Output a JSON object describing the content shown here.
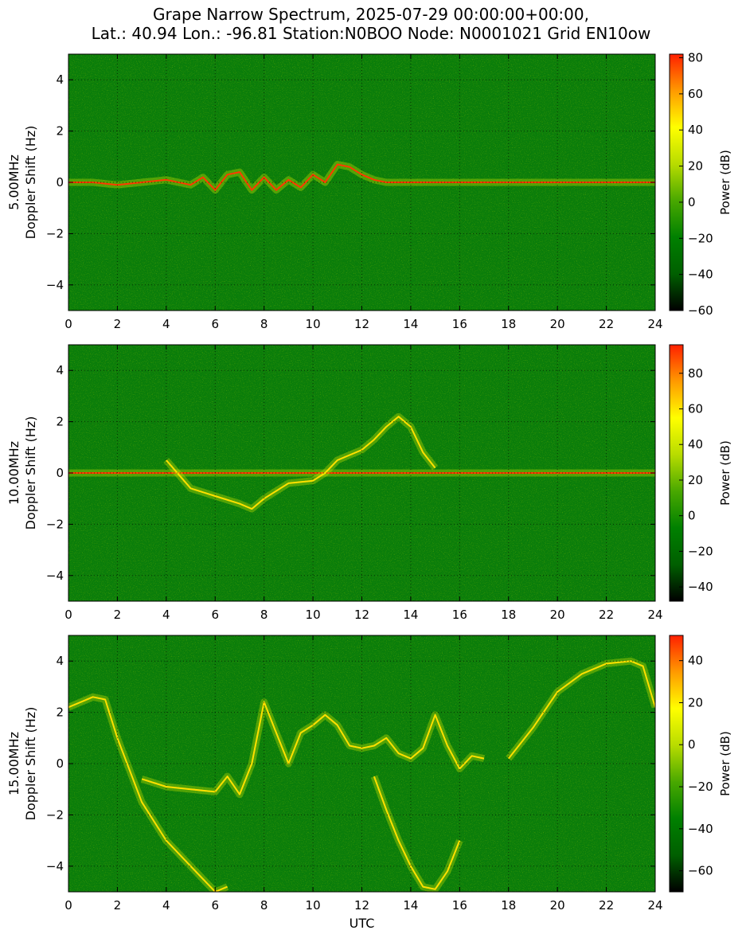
{
  "title": {
    "line1": "Grape Narrow Spectrum, 2025-07-29 00:00:00+00:00,",
    "line2": "Lat.: 40.94 Lon.: -96.81 Station:N0BOO Node: N0001021 Grid EN10ow"
  },
  "colors": {
    "spectrogram_background": "#0a7d0a",
    "colormap": [
      "#000000",
      "#005f00",
      "#008000",
      "#49a800",
      "#b8dc00",
      "#ffff00",
      "#ff9a00",
      "#ff2000"
    ]
  },
  "chart_data": [
    {
      "type": "heatmap",
      "frequency": "5.00MHz",
      "ylabel_line1": "5.00MHz",
      "ylabel_line2": "Doppler Shift (Hz)",
      "xlabel": "",
      "xlim": [
        0,
        24
      ],
      "ylim": [
        -5,
        5
      ],
      "x_ticks": [
        0,
        2,
        4,
        6,
        8,
        10,
        12,
        14,
        16,
        18,
        20,
        22,
        24
      ],
      "y_ticks": [
        -4,
        -2,
        0,
        2,
        4
      ],
      "grid": true,
      "colorbar": {
        "label": "Power (dB)",
        "range": [
          -60,
          82
        ],
        "ticks": [
          -60,
          -40,
          -20,
          0,
          20,
          40,
          60,
          80
        ]
      },
      "traces": [
        {
          "name": "",
          "x": [
            0,
            1,
            2,
            3,
            4,
            5,
            5.5,
            6,
            6.5,
            7,
            7.5,
            8,
            8.5,
            9,
            9.5,
            10,
            10.5,
            11,
            11.5,
            12,
            12.5,
            13,
            14,
            16,
            18,
            20,
            22,
            24
          ],
          "y": [
            0.0,
            0.0,
            -0.1,
            0.0,
            0.1,
            -0.1,
            0.2,
            -0.3,
            0.3,
            0.4,
            -0.3,
            0.2,
            -0.3,
            0.1,
            -0.2,
            0.3,
            0.0,
            0.7,
            0.6,
            0.3,
            0.1,
            0.0,
            0.0,
            0.0,
            0.0,
            0.0,
            0.0,
            0.0
          ]
        }
      ]
    },
    {
      "type": "heatmap",
      "frequency": "10.00MHz",
      "ylabel_line1": "10.00MHz",
      "ylabel_line2": "Doppler Shift (Hz)",
      "xlabel": "",
      "xlim": [
        0,
        24
      ],
      "ylim": [
        -5,
        5
      ],
      "x_ticks": [
        0,
        2,
        4,
        6,
        8,
        10,
        12,
        14,
        16,
        18,
        20,
        22,
        24
      ],
      "y_ticks": [
        -4,
        -2,
        0,
        2,
        4
      ],
      "grid": true,
      "colorbar": {
        "label": "Power (dB)",
        "range": [
          -48,
          96
        ],
        "ticks": [
          -40,
          -20,
          0,
          20,
          40,
          60,
          80
        ]
      },
      "traces": [
        {
          "name": "",
          "x": [
            0,
            2,
            4,
            6,
            8,
            10,
            12,
            14,
            16,
            18,
            20,
            22,
            24
          ],
          "y": [
            0,
            0,
            0,
            0,
            0,
            0,
            0,
            0,
            0,
            0,
            0,
            0,
            0
          ]
        },
        {
          "name": "",
          "x": [
            4,
            5,
            6,
            7,
            7.5,
            8,
            9,
            10,
            10.5,
            11,
            12,
            12.5,
            13,
            13.5,
            14,
            14.5,
            15
          ],
          "y": [
            0.5,
            -0.6,
            -0.9,
            -1.2,
            -1.4,
            -1.0,
            -0.4,
            -0.3,
            0.0,
            0.5,
            0.9,
            1.3,
            1.8,
            2.2,
            1.8,
            0.8,
            0.2
          ]
        }
      ]
    },
    {
      "type": "heatmap",
      "frequency": "15.00MHz",
      "ylabel_line1": "15.00MHz",
      "ylabel_line2": "Doppler Shift (Hz)",
      "xlabel": "UTC",
      "xlim": [
        0,
        24
      ],
      "ylim": [
        -5,
        5
      ],
      "x_ticks": [
        0,
        2,
        4,
        6,
        8,
        10,
        12,
        14,
        16,
        18,
        20,
        22,
        24
      ],
      "y_ticks": [
        -4,
        -2,
        0,
        2,
        4
      ],
      "grid": true,
      "colorbar": {
        "label": "Power (dB)",
        "range": [
          -70,
          52
        ],
        "ticks": [
          -60,
          -40,
          -20,
          0,
          20,
          40
        ]
      },
      "traces": [
        {
          "name": "",
          "x": [
            0,
            1,
            1.5,
            2,
            3,
            4,
            5,
            6,
            6.5
          ],
          "y": [
            2.2,
            2.6,
            2.5,
            1.0,
            -1.5,
            -3.0,
            -4.0,
            -5.0,
            -4.8
          ]
        },
        {
          "name": "",
          "x": [
            3,
            4,
            5,
            6,
            6.5,
            7,
            7.5,
            8,
            8.5,
            9,
            9.5,
            10,
            10.5,
            11,
            11.5,
            12,
            12.5,
            13,
            13.5,
            14,
            14.5,
            15,
            15.5,
            16,
            16.5,
            17
          ],
          "y": [
            -0.6,
            -0.9,
            -1.0,
            -1.1,
            -0.5,
            -1.2,
            0.0,
            2.4,
            1.2,
            0.0,
            1.2,
            1.5,
            1.9,
            1.5,
            0.7,
            0.6,
            0.7,
            1.0,
            0.4,
            0.2,
            0.6,
            1.9,
            0.7,
            -0.2,
            0.3,
            0.2
          ]
        },
        {
          "name": "",
          "x": [
            12.5,
            13,
            13.5,
            14,
            14.5,
            15,
            15.5,
            16
          ],
          "y": [
            -0.5,
            -1.8,
            -3.0,
            -4.0,
            -4.8,
            -4.9,
            -4.2,
            -3.0
          ]
        },
        {
          "name": "",
          "x": [
            18,
            19,
            20,
            21,
            22,
            23,
            23.5,
            24
          ],
          "y": [
            0.2,
            1.4,
            2.8,
            3.5,
            3.9,
            4.0,
            3.8,
            2.2
          ]
        }
      ]
    }
  ]
}
